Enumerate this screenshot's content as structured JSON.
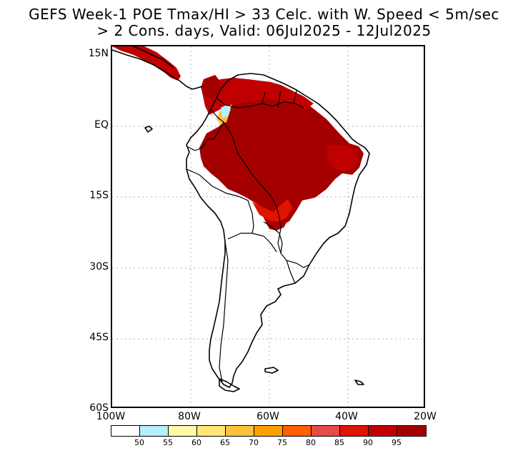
{
  "title_line1": "GEFS Week-1 POE Tmax/HI > 33 Celc. with W. Speed < 5m/sec",
  "title_line2": "> 2 Cons. days, Valid: 06Jul2025 - 12Jul2025",
  "lat_labels": [
    "15N",
    "EQ",
    "15S",
    "30S",
    "45S",
    "60S"
  ],
  "lon_labels": [
    "100W",
    "80W",
    "60W",
    "40W",
    "20W"
  ],
  "colorbar": {
    "colors": [
      "#ffffff",
      "#b4f0fa",
      "#fffaaa",
      "#ffe878",
      "#ffc03c",
      "#ffa000",
      "#ff6000",
      "#e64b4b",
      "#e11400",
      "#c00000",
      "#a50000"
    ],
    "labels": [
      "50",
      "55",
      "60",
      "65",
      "70",
      "75",
      "80",
      "85",
      "90",
      "95"
    ]
  },
  "colors": {
    "heavy": "#a50000",
    "high": "#c00000",
    "mid": "#e11400",
    "low": "#ffc03c",
    "pale": "#b4f0fa",
    "coast": "#000000",
    "grid": "#b0b0b0"
  }
}
